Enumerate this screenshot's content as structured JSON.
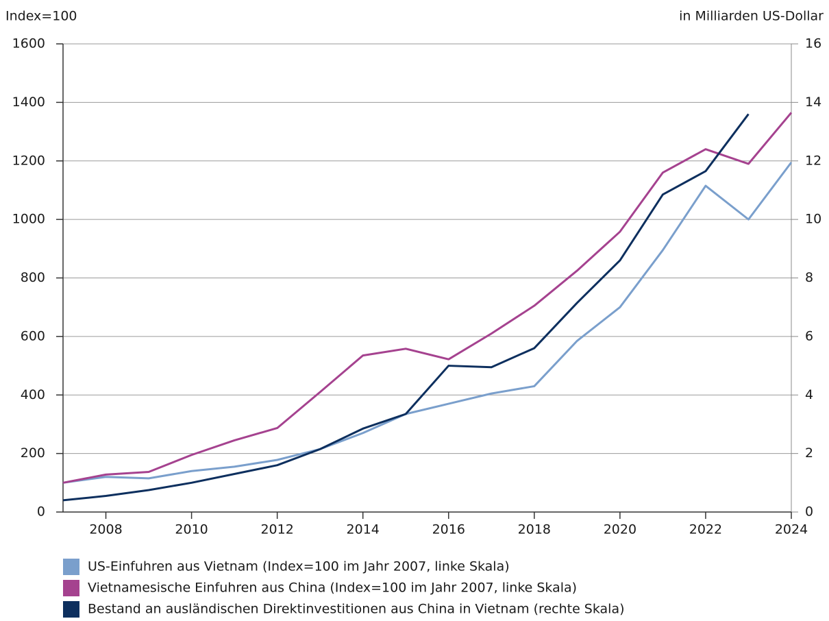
{
  "chart_data": {
    "type": "line",
    "y_label": "Index=100",
    "y2_label": "in Milliarden US-Dollar",
    "x": [
      2007,
      2008,
      2009,
      2010,
      2011,
      2012,
      2013,
      2014,
      2015,
      2016,
      2017,
      2018,
      2019,
      2020,
      2021,
      2022,
      2023,
      2024
    ],
    "xlim": [
      2007,
      2024
    ],
    "xticks": [
      2008,
      2010,
      2012,
      2014,
      2016,
      2018,
      2020,
      2022,
      2024
    ],
    "ylim": [
      0,
      1600
    ],
    "yticks": [
      0,
      200,
      400,
      600,
      800,
      1000,
      1200,
      1400,
      1600
    ],
    "y2lim": [
      0,
      16
    ],
    "y2ticks": [
      0,
      2,
      4,
      6,
      8,
      10,
      12,
      14,
      16
    ],
    "grid": true,
    "series": [
      {
        "name": "US-Einfuhren aus Vietnam (Index=100 im Jahr 2007, linke Skala)",
        "color": "#7a9fcc",
        "values": [
          100,
          120,
          115,
          140,
          155,
          178,
          215,
          270,
          335,
          370,
          405,
          430,
          585,
          700,
          895,
          1115,
          1000,
          1195
        ]
      },
      {
        "name": "Vietnamesische Einfuhren aus China (Index=100 im Jahr 2007, linke Skala)",
        "color": "#a5428f",
        "values": [
          100,
          128,
          137,
          195,
          245,
          287,
          410,
          535,
          558,
          522,
          610,
          705,
          825,
          958,
          1160,
          1240,
          1190,
          1365
        ]
      },
      {
        "name": "Bestand an ausländischen Direktinvestitionen aus China in Vietnam (rechte Skala)",
        "color": "#0d2f5e",
        "axis": "y2",
        "values": [
          0.4,
          0.55,
          0.75,
          1.0,
          1.3,
          1.6,
          2.15,
          2.85,
          3.35,
          5.0,
          4.95,
          5.6,
          7.15,
          8.6,
          10.85,
          11.65,
          13.6,
          null
        ]
      }
    ]
  }
}
